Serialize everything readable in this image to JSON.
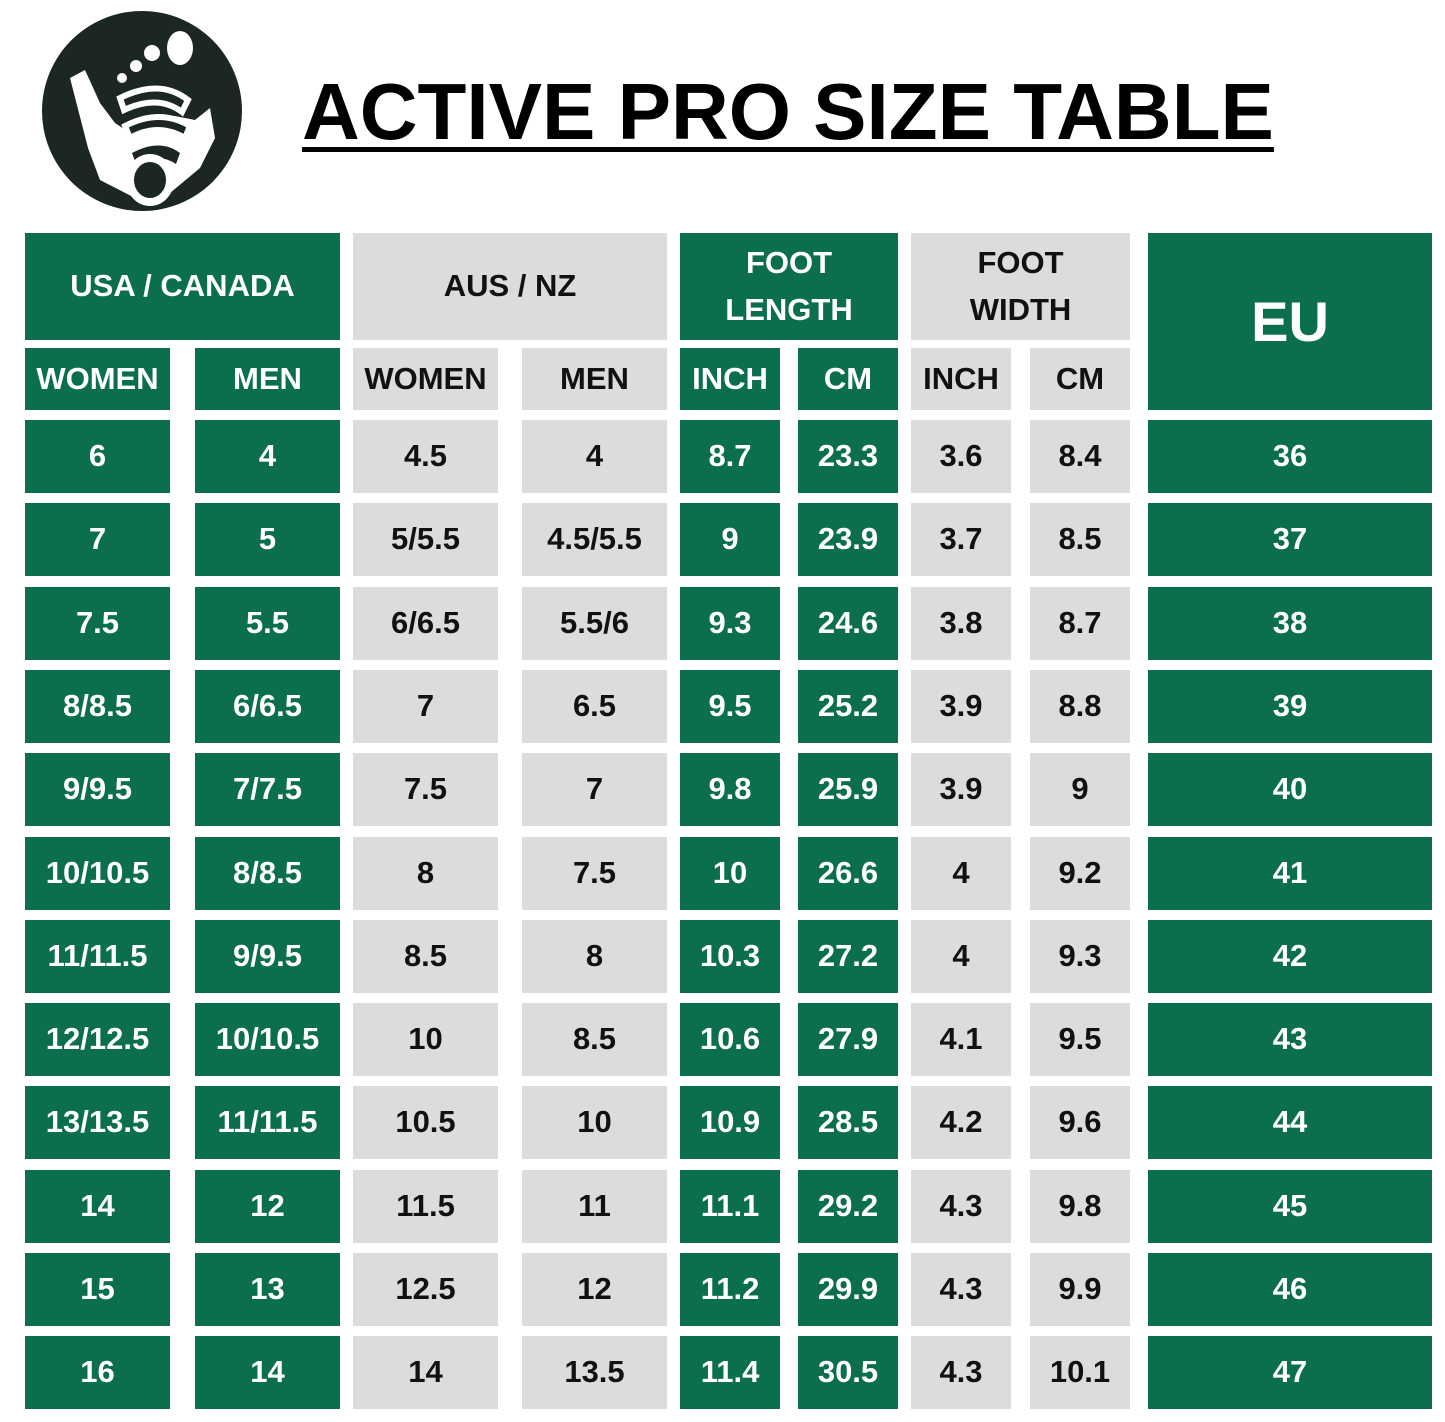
{
  "title": "ACTIVE PRO SIZE TABLE",
  "logo": {
    "icon": "footprint-mountain-icon"
  },
  "colors": {
    "green": "#0b6e4f",
    "gray": "#dcdcdc",
    "logo": "#1c2624"
  },
  "groups": [
    {
      "label": "USA / CANADA"
    },
    {
      "label": "AUS / NZ"
    },
    {
      "label": "FOOT LENGTH"
    },
    {
      "label": "FOOT WIDTH"
    },
    {
      "label": "EU"
    }
  ],
  "subheaders": [
    "WOMEN",
    "MEN",
    "WOMEN",
    "MEN",
    "INCH",
    "CM",
    "INCH",
    "CM"
  ],
  "rows": [
    [
      "6",
      "4",
      "4.5",
      "4",
      "8.7",
      "23.3",
      "3.6",
      "8.4",
      "36"
    ],
    [
      "7",
      "5",
      "5/5.5",
      "4.5/5.5",
      "9",
      "23.9",
      "3.7",
      "8.5",
      "37"
    ],
    [
      "7.5",
      "5.5",
      "6/6.5",
      "5.5/6",
      "9.3",
      "24.6",
      "3.8",
      "8.7",
      "38"
    ],
    [
      "8/8.5",
      "6/6.5",
      "7",
      "6.5",
      "9.5",
      "25.2",
      "3.9",
      "8.8",
      "39"
    ],
    [
      "9/9.5",
      "7/7.5",
      "7.5",
      "7",
      "9.8",
      "25.9",
      "3.9",
      "9",
      "40"
    ],
    [
      "10/10.5",
      "8/8.5",
      "8",
      "7.5",
      "10",
      "26.6",
      "4",
      "9.2",
      "41"
    ],
    [
      "11/11.5",
      "9/9.5",
      "8.5",
      "8",
      "10.3",
      "27.2",
      "4",
      "9.3",
      "42"
    ],
    [
      "12/12.5",
      "10/10.5",
      "10",
      "8.5",
      "10.6",
      "27.9",
      "4.1",
      "9.5",
      "43"
    ],
    [
      "13/13.5",
      "11/11.5",
      "10.5",
      "10",
      "10.9",
      "28.5",
      "4.2",
      "9.6",
      "44"
    ],
    [
      "14",
      "12",
      "11.5",
      "11",
      "11.1",
      "29.2",
      "4.3",
      "9.8",
      "45"
    ],
    [
      "15",
      "13",
      "12.5",
      "12",
      "11.2",
      "29.9",
      "4.3",
      "9.9",
      "46"
    ],
    [
      "16",
      "14",
      "14",
      "13.5",
      "11.4",
      "30.5",
      "4.3",
      "10.1",
      "47"
    ]
  ]
}
